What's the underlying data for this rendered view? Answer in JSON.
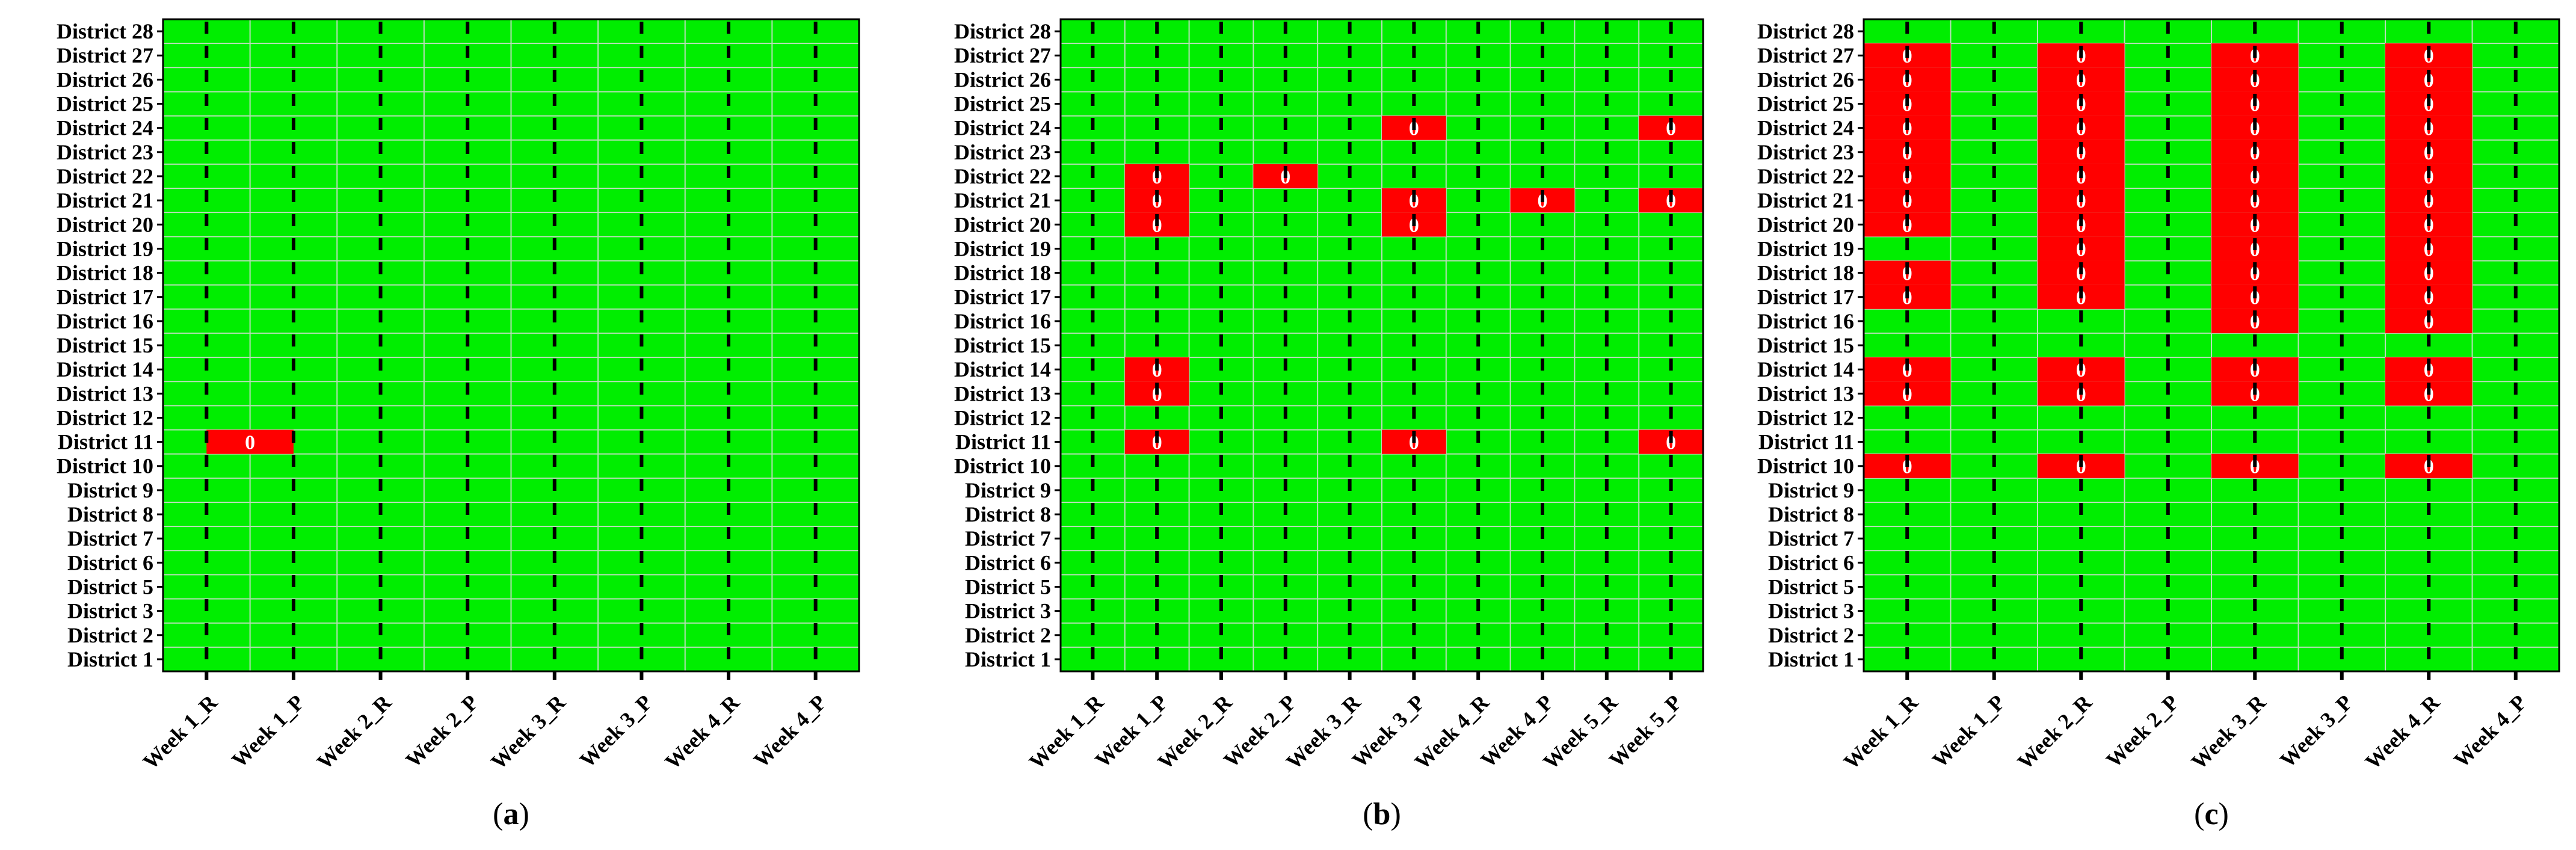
{
  "colors": {
    "background_cell": "#00ee00",
    "highlight_cell": "#ff0000",
    "grid_line": "#b8ddb8",
    "dashed_line": "#000000",
    "cell_text": "#ffffff"
  },
  "rows": [
    "District 1",
    "District 2",
    "District 3",
    "District 5",
    "District 6",
    "District 7",
    "District 8",
    "District 9",
    "District 10",
    "District 11",
    "District 12",
    "District 13",
    "District 14",
    "District 15",
    "District 16",
    "District 17",
    "District 18",
    "District 19",
    "District 20",
    "District 21",
    "District 22",
    "District 23",
    "District 24",
    "District 25",
    "District 26",
    "District 27",
    "District 28"
  ],
  "chart_data": [
    {
      "type": "heatmap",
      "panel_label": "a",
      "x_categories": [
        "Week 1_R",
        "Week 1_P",
        "Week 2_R",
        "Week 2_P",
        "Week 3_R",
        "Week 3_P",
        "Week 4_R",
        "Week 4_P"
      ],
      "highlights": [
        {
          "district": "District 11",
          "from": "Week 1_R",
          "to": "Week 1_P",
          "label": "0"
        }
      ]
    },
    {
      "type": "heatmap",
      "panel_label": "b",
      "x_categories": [
        "Week 1_R",
        "Week 1_P",
        "Week 2_R",
        "Week 2_P",
        "Week 3_R",
        "Week 3_P",
        "Week 4_R",
        "Week 4_P",
        "Week 5_R",
        "Week 5_P"
      ],
      "highlights": [
        {
          "district": "District 22",
          "from": "Week 1_P",
          "to": "Week 1_P",
          "label": "0"
        },
        {
          "district": "District 21",
          "from": "Week 1_P",
          "to": "Week 1_P",
          "label": "0"
        },
        {
          "district": "District 20",
          "from": "Week 1_P",
          "to": "Week 1_P",
          "label": "0"
        },
        {
          "district": "District 14",
          "from": "Week 1_P",
          "to": "Week 1_P",
          "label": "0"
        },
        {
          "district": "District 13",
          "from": "Week 1_P",
          "to": "Week 1_P",
          "label": "0"
        },
        {
          "district": "District 11",
          "from": "Week 1_P",
          "to": "Week 1_P",
          "label": "0"
        },
        {
          "district": "District 22",
          "from": "Week 2_P",
          "to": "Week 2_P",
          "label": "0"
        },
        {
          "district": "District 24",
          "from": "Week 3_P",
          "to": "Week 3_P",
          "label": "0"
        },
        {
          "district": "District 21",
          "from": "Week 3_P",
          "to": "Week 3_P",
          "label": "0"
        },
        {
          "district": "District 20",
          "from": "Week 3_P",
          "to": "Week 3_P",
          "label": "0"
        },
        {
          "district": "District 11",
          "from": "Week 3_P",
          "to": "Week 3_P",
          "label": "0"
        },
        {
          "district": "District 21",
          "from": "Week 4_P",
          "to": "Week 4_P",
          "label": "0"
        },
        {
          "district": "District 24",
          "from": "Week 5_P",
          "to": "Week 5_P",
          "label": "0"
        },
        {
          "district": "District 21",
          "from": "Week 5_P",
          "to": "Week 5_P",
          "label": "0"
        },
        {
          "district": "District 11",
          "from": "Week 5_P",
          "to": "Week 5_P",
          "label": "0"
        }
      ]
    },
    {
      "type": "heatmap",
      "panel_label": "c",
      "x_categories": [
        "Week 1_R",
        "Week 1_P",
        "Week 2_R",
        "Week 2_P",
        "Week 3_R",
        "Week 3_P",
        "Week 4_R",
        "Week 4_P"
      ],
      "highlights": [
        {
          "district": "District 27",
          "from": "Week 1_R",
          "to": "Week 1_R",
          "label": "0"
        },
        {
          "district": "District 26",
          "from": "Week 1_R",
          "to": "Week 1_R",
          "label": "0"
        },
        {
          "district": "District 25",
          "from": "Week 1_R",
          "to": "Week 1_R",
          "label": "0"
        },
        {
          "district": "District 24",
          "from": "Week 1_R",
          "to": "Week 1_R",
          "label": "0"
        },
        {
          "district": "District 23",
          "from": "Week 1_R",
          "to": "Week 1_R",
          "label": "0"
        },
        {
          "district": "District 22",
          "from": "Week 1_R",
          "to": "Week 1_R",
          "label": "0"
        },
        {
          "district": "District 21",
          "from": "Week 1_R",
          "to": "Week 1_R",
          "label": "0"
        },
        {
          "district": "District 20",
          "from": "Week 1_R",
          "to": "Week 1_R",
          "label": "0"
        },
        {
          "district": "District 18",
          "from": "Week 1_R",
          "to": "Week 1_R",
          "label": "0"
        },
        {
          "district": "District 17",
          "from": "Week 1_R",
          "to": "Week 1_R",
          "label": "0"
        },
        {
          "district": "District 14",
          "from": "Week 1_R",
          "to": "Week 1_R",
          "label": "0"
        },
        {
          "district": "District 13",
          "from": "Week 1_R",
          "to": "Week 1_R",
          "label": "0"
        },
        {
          "district": "District 10",
          "from": "Week 1_R",
          "to": "Week 1_R",
          "label": "0"
        },
        {
          "district": "District 27",
          "from": "Week 2_R",
          "to": "Week 2_R",
          "label": "0"
        },
        {
          "district": "District 26",
          "from": "Week 2_R",
          "to": "Week 2_R",
          "label": "0"
        },
        {
          "district": "District 25",
          "from": "Week 2_R",
          "to": "Week 2_R",
          "label": "0"
        },
        {
          "district": "District 24",
          "from": "Week 2_R",
          "to": "Week 2_R",
          "label": "0"
        },
        {
          "district": "District 23",
          "from": "Week 2_R",
          "to": "Week 2_R",
          "label": "0"
        },
        {
          "district": "District 22",
          "from": "Week 2_R",
          "to": "Week 2_R",
          "label": "0"
        },
        {
          "district": "District 21",
          "from": "Week 2_R",
          "to": "Week 2_R",
          "label": "0"
        },
        {
          "district": "District 20",
          "from": "Week 2_R",
          "to": "Week 2_R",
          "label": "0"
        },
        {
          "district": "District 19",
          "from": "Week 2_R",
          "to": "Week 2_R",
          "label": "0"
        },
        {
          "district": "District 18",
          "from": "Week 2_R",
          "to": "Week 2_R",
          "label": "0"
        },
        {
          "district": "District 17",
          "from": "Week 2_R",
          "to": "Week 2_R",
          "label": "0"
        },
        {
          "district": "District 14",
          "from": "Week 2_R",
          "to": "Week 2_R",
          "label": "0"
        },
        {
          "district": "District 13",
          "from": "Week 2_R",
          "to": "Week 2_R",
          "label": "0"
        },
        {
          "district": "District 10",
          "from": "Week 2_R",
          "to": "Week 2_R",
          "label": "0"
        },
        {
          "district": "District 27",
          "from": "Week 3_R",
          "to": "Week 3_R",
          "label": "0"
        },
        {
          "district": "District 26",
          "from": "Week 3_R",
          "to": "Week 3_R",
          "label": "0"
        },
        {
          "district": "District 25",
          "from": "Week 3_R",
          "to": "Week 3_R",
          "label": "0"
        },
        {
          "district": "District 24",
          "from": "Week 3_R",
          "to": "Week 3_R",
          "label": "0"
        },
        {
          "district": "District 23",
          "from": "Week 3_R",
          "to": "Week 3_R",
          "label": "0"
        },
        {
          "district": "District 22",
          "from": "Week 3_R",
          "to": "Week 3_R",
          "label": "0"
        },
        {
          "district": "District 21",
          "from": "Week 3_R",
          "to": "Week 3_R",
          "label": "0"
        },
        {
          "district": "District 20",
          "from": "Week 3_R",
          "to": "Week 3_R",
          "label": "0"
        },
        {
          "district": "District 19",
          "from": "Week 3_R",
          "to": "Week 3_R",
          "label": "0"
        },
        {
          "district": "District 18",
          "from": "Week 3_R",
          "to": "Week 3_R",
          "label": "0"
        },
        {
          "district": "District 17",
          "from": "Week 3_R",
          "to": "Week 3_R",
          "label": "0"
        },
        {
          "district": "District 16",
          "from": "Week 3_R",
          "to": "Week 3_R",
          "label": "0"
        },
        {
          "district": "District 14",
          "from": "Week 3_R",
          "to": "Week 3_R",
          "label": "0"
        },
        {
          "district": "District 13",
          "from": "Week 3_R",
          "to": "Week 3_R",
          "label": "0"
        },
        {
          "district": "District 10",
          "from": "Week 3_R",
          "to": "Week 3_R",
          "label": "0"
        },
        {
          "district": "District 27",
          "from": "Week 4_R",
          "to": "Week 4_R",
          "label": "0"
        },
        {
          "district": "District 26",
          "from": "Week 4_R",
          "to": "Week 4_R",
          "label": "0"
        },
        {
          "district": "District 25",
          "from": "Week 4_R",
          "to": "Week 4_R",
          "label": "0"
        },
        {
          "district": "District 24",
          "from": "Week 4_R",
          "to": "Week 4_R",
          "label": "0"
        },
        {
          "district": "District 23",
          "from": "Week 4_R",
          "to": "Week 4_R",
          "label": "0"
        },
        {
          "district": "District 22",
          "from": "Week 4_R",
          "to": "Week 4_R",
          "label": "0"
        },
        {
          "district": "District 21",
          "from": "Week 4_R",
          "to": "Week 4_R",
          "label": "0"
        },
        {
          "district": "District 20",
          "from": "Week 4_R",
          "to": "Week 4_R",
          "label": "0"
        },
        {
          "district": "District 19",
          "from": "Week 4_R",
          "to": "Week 4_R",
          "label": "0"
        },
        {
          "district": "District 18",
          "from": "Week 4_R",
          "to": "Week 4_R",
          "label": "0"
        },
        {
          "district": "District 17",
          "from": "Week 4_R",
          "to": "Week 4_R",
          "label": "0"
        },
        {
          "district": "District 16",
          "from": "Week 4_R",
          "to": "Week 4_R",
          "label": "0"
        },
        {
          "district": "District 14",
          "from": "Week 4_R",
          "to": "Week 4_R",
          "label": "0"
        },
        {
          "district": "District 13",
          "from": "Week 4_R",
          "to": "Week 4_R",
          "label": "0"
        },
        {
          "district": "District 10",
          "from": "Week 4_R",
          "to": "Week 4_R",
          "label": "0"
        }
      ]
    }
  ]
}
